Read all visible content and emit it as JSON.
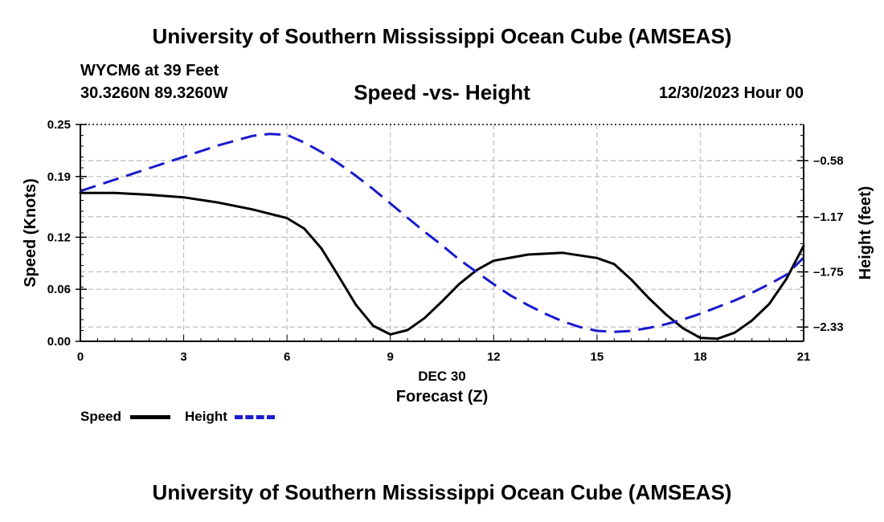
{
  "page": {
    "title_top": "University of Southern Mississippi Ocean Cube (AMSEAS)",
    "title_bottom": "University of Southern Mississippi Ocean Cube (AMSEAS)",
    "station": "WYCM6 at 39 Feet",
    "coords": "30.3260N  89.3260W",
    "subtitle": "Speed -vs- Height",
    "datetime": "12/30/2023 Hour 00"
  },
  "legend": {
    "speed_label": "Speed",
    "height_label": "Height"
  },
  "chart_data": {
    "type": "line",
    "title": "Speed -vs- Height",
    "xlabel": "Forecast (Z)",
    "xlabel_date": "DEC 30",
    "ylabel_left": "Speed (Knots)",
    "ylabel_right": "Height (feet)",
    "xlim": [
      0,
      21
    ],
    "ylim_left": [
      0,
      0.25
    ],
    "ylim_right": [
      -2.48,
      -0.2
    ],
    "x_ticks": [
      0,
      3,
      6,
      9,
      12,
      15,
      18,
      21
    ],
    "x_tick_labels": [
      "0",
      "3",
      "6",
      "9",
      "12",
      "15",
      "18",
      "21"
    ],
    "y_left_ticks": [
      0,
      0.06,
      0.12,
      0.19,
      0.25
    ],
    "y_left_tick_labels": [
      "0.00",
      "0.06",
      "0.12",
      "0.19",
      "0.25"
    ],
    "y_right_ticks": [
      -0.58,
      -1.17,
      -1.75,
      -2.33
    ],
    "y_right_tick_labels": [
      "-0.58",
      "-1.17",
      "-1.75",
      "-2.33"
    ],
    "grid": true,
    "colors": {
      "speed": "#000000",
      "height": "#1a1acc",
      "grid": "#bbbbbb"
    },
    "series": [
      {
        "name": "Speed",
        "axis": "left",
        "style": "solid",
        "x": [
          0,
          1,
          2,
          3,
          4,
          5,
          6,
          6.5,
          7,
          7.5,
          8,
          8.5,
          9,
          9.5,
          10,
          10.5,
          11,
          11.5,
          12,
          13,
          14,
          15,
          15.5,
          16,
          16.5,
          17,
          17.5,
          18,
          18.5,
          19,
          19.5,
          20,
          20.5,
          21
        ],
        "values": [
          0.171,
          0.171,
          0.169,
          0.166,
          0.16,
          0.152,
          0.142,
          0.13,
          0.107,
          0.075,
          0.042,
          0.018,
          0.008,
          0.013,
          0.027,
          0.046,
          0.066,
          0.082,
          0.093,
          0.1,
          0.102,
          0.096,
          0.089,
          0.071,
          0.05,
          0.031,
          0.015,
          0.004,
          0.003,
          0.01,
          0.024,
          0.043,
          0.072,
          0.11
        ]
      },
      {
        "name": "Height",
        "axis": "right",
        "style": "dashed",
        "x": [
          0,
          1,
          2,
          3,
          4,
          5,
          5.5,
          6,
          6.5,
          7,
          7.5,
          8,
          8.5,
          9,
          9.5,
          10,
          10.5,
          11,
          11.5,
          12,
          12.5,
          13,
          13.5,
          14,
          14.5,
          15,
          15.5,
          16,
          16.5,
          17,
          17.5,
          18,
          18.5,
          19,
          19.5,
          20,
          20.5,
          21
        ],
        "values": [
          -0.9,
          -0.78,
          -0.66,
          -0.54,
          -0.42,
          -0.32,
          -0.3,
          -0.31,
          -0.39,
          -0.49,
          -0.61,
          -0.74,
          -0.88,
          -1.03,
          -1.18,
          -1.33,
          -1.47,
          -1.62,
          -1.75,
          -1.88,
          -2.0,
          -2.1,
          -2.19,
          -2.27,
          -2.33,
          -2.37,
          -2.38,
          -2.37,
          -2.34,
          -2.3,
          -2.25,
          -2.19,
          -2.12,
          -2.05,
          -1.97,
          -1.88,
          -1.78,
          -1.6
        ]
      }
    ]
  }
}
